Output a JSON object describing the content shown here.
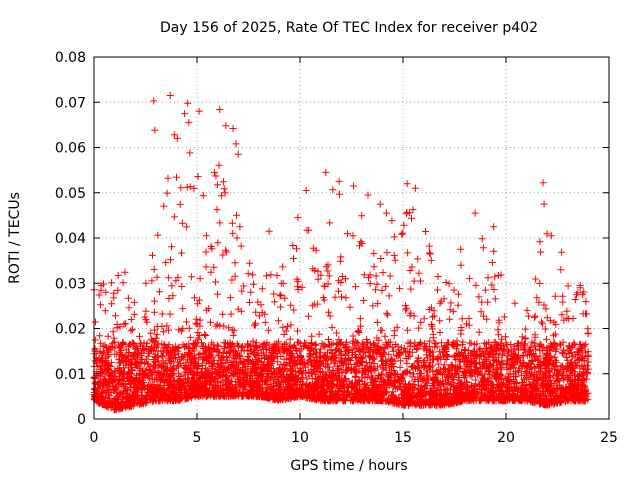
{
  "chart_data": {
    "type": "scatter",
    "title": "Day 156 of 2025, Rate Of TEC Index for receiver p402",
    "xlabel": "GPS time / hours",
    "ylabel": "ROTI / TECUs",
    "xlim": [
      0,
      25
    ],
    "ylim": [
      0,
      0.08
    ],
    "xticks": [
      0,
      5,
      10,
      15,
      20,
      25
    ],
    "yticks": [
      0,
      0.01,
      0.02,
      0.03,
      0.04,
      0.05,
      0.06,
      0.07,
      0.08
    ],
    "xtick_labels": [
      "0",
      "5",
      "10",
      "15",
      "20",
      "25"
    ],
    "ytick_labels": [
      "0",
      "0.01",
      "0.02",
      "0.03",
      "0.04",
      "0.05",
      "0.06",
      "0.07",
      "0.08"
    ],
    "grid": true,
    "marker": "+",
    "color": "#ff0000",
    "series": [
      {
        "name": "ROTI",
        "note": "dense cloud of ~thousands of points; baseline 0.003-0.02 TECU/s throughout 0-24 h; representative peaks listed",
        "x": [
          2.9,
          2.95,
          3.7,
          3.9,
          4.05,
          4.4,
          4.55,
          4.6,
          4.65,
          5.1,
          6.1,
          6.4,
          6.75,
          6.9,
          7.0,
          5.85,
          11.25,
          12.6,
          13.3,
          13.9,
          14.2,
          15.2,
          15.6,
          18.5,
          19.4,
          21.8,
          21.85,
          22.2,
          23.6,
          8.5,
          9.9,
          10.3,
          11.9,
          16.7,
          17.8
        ],
        "y": [
          0.0703,
          0.0638,
          0.0715,
          0.0628,
          0.062,
          0.0675,
          0.0698,
          0.0655,
          0.0588,
          0.068,
          0.0684,
          0.0648,
          0.0642,
          0.0608,
          0.0585,
          0.0545,
          0.0545,
          0.0515,
          0.0495,
          0.0475,
          0.0455,
          0.052,
          0.051,
          0.0455,
          0.0425,
          0.0522,
          0.0475,
          0.0405,
          0.0295,
          0.0415,
          0.0445,
          0.0505,
          0.0525,
          0.0315,
          0.0375
        ]
      }
    ],
    "baseline_envelope": {
      "description": "approximate upper envelope of the dense point cloud per hour",
      "hours": [
        0,
        1,
        2,
        3,
        4,
        5,
        6,
        7,
        8,
        9,
        10,
        11,
        12,
        13,
        14,
        15,
        16,
        17,
        18,
        19,
        20,
        21,
        22,
        23,
        24
      ],
      "upper": [
        0.03,
        0.035,
        0.03,
        0.045,
        0.06,
        0.065,
        0.058,
        0.045,
        0.03,
        0.035,
        0.045,
        0.052,
        0.05,
        0.045,
        0.04,
        0.05,
        0.045,
        0.03,
        0.035,
        0.045,
        0.028,
        0.025,
        0.05,
        0.032,
        0.028
      ],
      "lower": [
        0.004,
        0.002,
        0.003,
        0.004,
        0.004,
        0.005,
        0.005,
        0.005,
        0.005,
        0.004,
        0.005,
        0.004,
        0.004,
        0.004,
        0.004,
        0.003,
        0.003,
        0.003,
        0.004,
        0.004,
        0.004,
        0.004,
        0.003,
        0.004,
        0.004
      ]
    }
  }
}
